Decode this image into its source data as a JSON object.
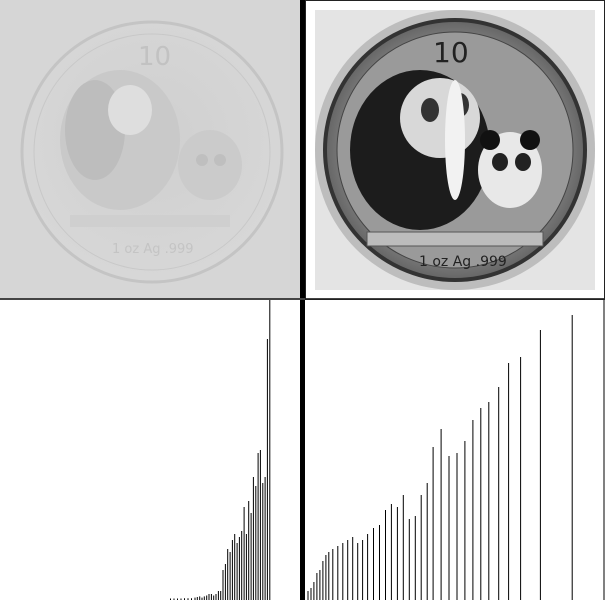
{
  "panels": {
    "original": {
      "coin_denomination": "10",
      "coin_bottom_text": "1 oz Ag .999",
      "contrast": "low"
    },
    "equalized": {
      "coin_denomination": "10",
      "coin_bottom_text": "1 oz Ag .999",
      "contrast": "high"
    }
  },
  "chart_data": [
    {
      "type": "bar",
      "title": "",
      "xlabel": "",
      "ylabel": "",
      "xlim": [
        0,
        255
      ],
      "ylim": [
        0,
        1
      ],
      "description_ref": "histogram-original",
      "x": [
        145,
        148,
        151,
        154,
        157,
        160,
        163,
        166,
        168,
        170,
        172,
        174,
        176,
        178,
        180,
        182,
        184,
        186,
        188,
        190,
        192,
        194,
        196,
        198,
        200,
        202,
        204,
        206,
        208,
        210,
        212,
        214,
        216,
        218,
        220,
        222,
        224,
        226,
        228,
        230
      ],
      "values": [
        0.005,
        0.005,
        0.005,
        0.005,
        0.006,
        0.006,
        0.006,
        0.008,
        0.01,
        0.012,
        0.008,
        0.012,
        0.015,
        0.02,
        0.02,
        0.015,
        0.02,
        0.03,
        0.03,
        0.1,
        0.12,
        0.17,
        0.16,
        0.2,
        0.22,
        0.19,
        0.21,
        0.23,
        0.31,
        0.22,
        0.33,
        0.29,
        0.41,
        0.38,
        0.49,
        0.5,
        0.39,
        0.41,
        0.87,
        1.0
      ]
    },
    {
      "type": "bar",
      "title": "",
      "xlabel": "",
      "ylabel": "",
      "xlim": [
        0,
        300
      ],
      "ylim": [
        0,
        1
      ],
      "description_ref": "histogram-equalized",
      "x": [
        2,
        5,
        8,
        11,
        14,
        17,
        20,
        23,
        27,
        32,
        37,
        42,
        47,
        52,
        57,
        62,
        68,
        74,
        80,
        86,
        92,
        98,
        104,
        110,
        116,
        122,
        128,
        136,
        144,
        152,
        160,
        168,
        176,
        184,
        194,
        204,
        216,
        236,
        268,
        300
      ],
      "values": [
        0.03,
        0.04,
        0.06,
        0.09,
        0.1,
        0.13,
        0.15,
        0.16,
        0.17,
        0.18,
        0.19,
        0.2,
        0.21,
        0.19,
        0.2,
        0.22,
        0.24,
        0.25,
        0.3,
        0.32,
        0.31,
        0.35,
        0.27,
        0.28,
        0.35,
        0.39,
        0.51,
        0.57,
        0.48,
        0.49,
        0.53,
        0.6,
        0.64,
        0.66,
        0.71,
        0.79,
        0.81,
        0.9,
        0.95,
        1.0
      ]
    }
  ]
}
